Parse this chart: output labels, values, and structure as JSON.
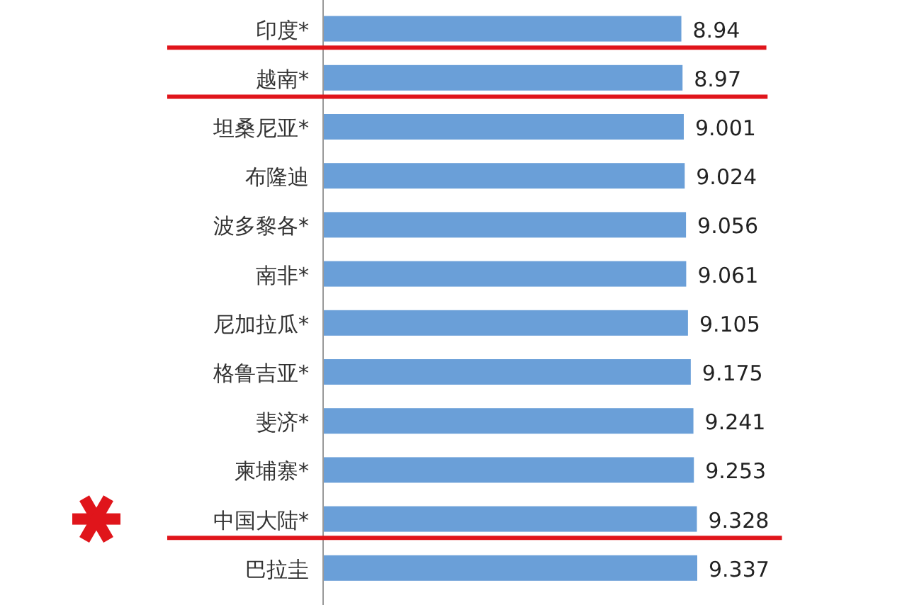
{
  "chart_data": {
    "type": "bar",
    "orientation": "horizontal",
    "data_labels": true,
    "categories": [
      "印度*",
      "越南*",
      "坦桑尼亚*",
      "布隆迪",
      "波多黎各*",
      "南非*",
      "尼加拉瓜*",
      "格鲁吉亚*",
      "斐济*",
      "柬埔寨*",
      "中国大陆*",
      "巴拉圭"
    ],
    "values": [
      8.94,
      8.97,
      9.001,
      9.024,
      9.056,
      9.061,
      9.105,
      9.175,
      9.241,
      9.253,
      9.328,
      9.337
    ],
    "value_labels": [
      "8.94",
      "8.97",
      "9.001",
      "9.024",
      "9.056",
      "9.061",
      "9.105",
      "9.175",
      "9.241",
      "9.253",
      "9.328",
      "9.337"
    ],
    "color": "#6a9fd8",
    "ref_lines": [
      {
        "axis": "y",
        "value": "印度*",
        "color": "#e0151b"
      },
      {
        "axis": "y",
        "value": "越南*",
        "color": "#e0151b"
      },
      {
        "axis": "y",
        "value": "中国大陆*",
        "color": "#e0151b"
      }
    ]
  }
}
